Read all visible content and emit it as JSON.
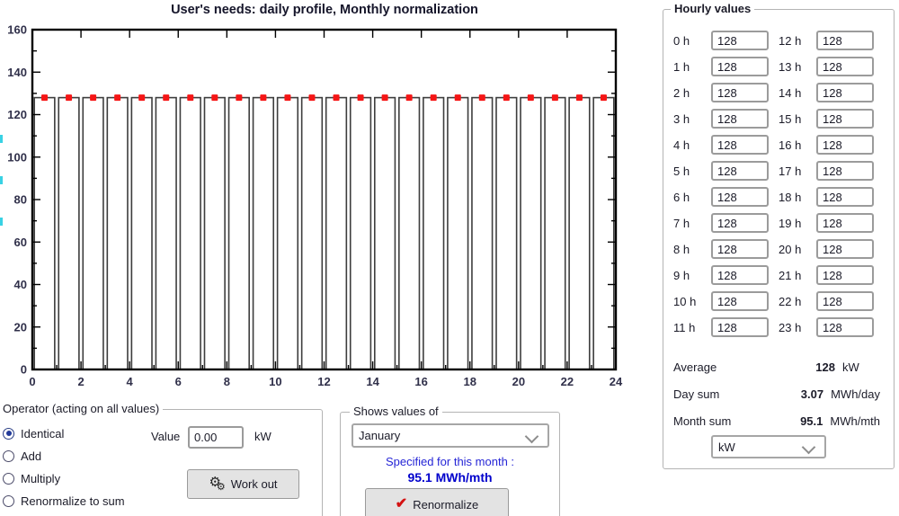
{
  "chart_data": {
    "type": "bar",
    "title": "User's needs: daily profile, Monthly normalization",
    "categories": [
      0,
      1,
      2,
      3,
      4,
      5,
      6,
      7,
      8,
      9,
      10,
      11,
      12,
      13,
      14,
      15,
      16,
      17,
      18,
      19,
      20,
      21,
      22,
      23
    ],
    "values": [
      128,
      128,
      128,
      128,
      128,
      128,
      128,
      128,
      128,
      128,
      128,
      128,
      128,
      128,
      128,
      128,
      128,
      128,
      128,
      128,
      128,
      128,
      128,
      128
    ],
    "xlabel": "",
    "ylabel": "",
    "xlim": [
      0,
      24
    ],
    "ylim": [
      0,
      160
    ],
    "x_tick_step_major": 2,
    "x_tick_step_minor": 1,
    "y_tick_step_major": 20,
    "y_tick_step_minor": 10,
    "grid": false,
    "bar_fill": "#ffffff",
    "bar_stroke": "#3d3d3d",
    "marker": "square",
    "marker_color": "#f51616"
  },
  "operator_panel": {
    "title": "Operator (acting on all values)",
    "options": [
      {
        "label": "Identical",
        "selected": true
      },
      {
        "label": "Add",
        "selected": false
      },
      {
        "label": "Multiply",
        "selected": false
      },
      {
        "label": "Renormalize to sum",
        "selected": false
      }
    ],
    "value_label": "Value",
    "value": "0.00",
    "unit": "kW",
    "work_out_label": "Work out"
  },
  "shows_panel": {
    "title": "Shows values of",
    "month": "January",
    "specified_label": "Specified for this month :",
    "specified_value": "95.1 MWh/mth",
    "renormalize_label": "Renormalize"
  },
  "hourly_panel": {
    "title": "Hourly values",
    "hours": [
      {
        "label": "0 h",
        "value": "128"
      },
      {
        "label": "1 h",
        "value": "128"
      },
      {
        "label": "2 h",
        "value": "128"
      },
      {
        "label": "3 h",
        "value": "128"
      },
      {
        "label": "4 h",
        "value": "128"
      },
      {
        "label": "5 h",
        "value": "128"
      },
      {
        "label": "6 h",
        "value": "128"
      },
      {
        "label": "7 h",
        "value": "128"
      },
      {
        "label": "8 h",
        "value": "128"
      },
      {
        "label": "9 h",
        "value": "128"
      },
      {
        "label": "10 h",
        "value": "128"
      },
      {
        "label": "11 h",
        "value": "128"
      },
      {
        "label": "12 h",
        "value": "128"
      },
      {
        "label": "13 h",
        "value": "128"
      },
      {
        "label": "14 h",
        "value": "128"
      },
      {
        "label": "15 h",
        "value": "128"
      },
      {
        "label": "16 h",
        "value": "128"
      },
      {
        "label": "17 h",
        "value": "128"
      },
      {
        "label": "18 h",
        "value": "128"
      },
      {
        "label": "19 h",
        "value": "128"
      },
      {
        "label": "20 h",
        "value": "128"
      },
      {
        "label": "21 h",
        "value": "128"
      },
      {
        "label": "22 h",
        "value": "128"
      },
      {
        "label": "23 h",
        "value": "128"
      }
    ],
    "summary": [
      {
        "label": "Average",
        "value": "128",
        "unit": "kW"
      },
      {
        "label": "Day sum",
        "value": "3.07",
        "unit": "MWh/day"
      },
      {
        "label": "Month sum",
        "value": "95.1",
        "unit": "MWh/mth"
      }
    ],
    "unit_select": "kW"
  }
}
